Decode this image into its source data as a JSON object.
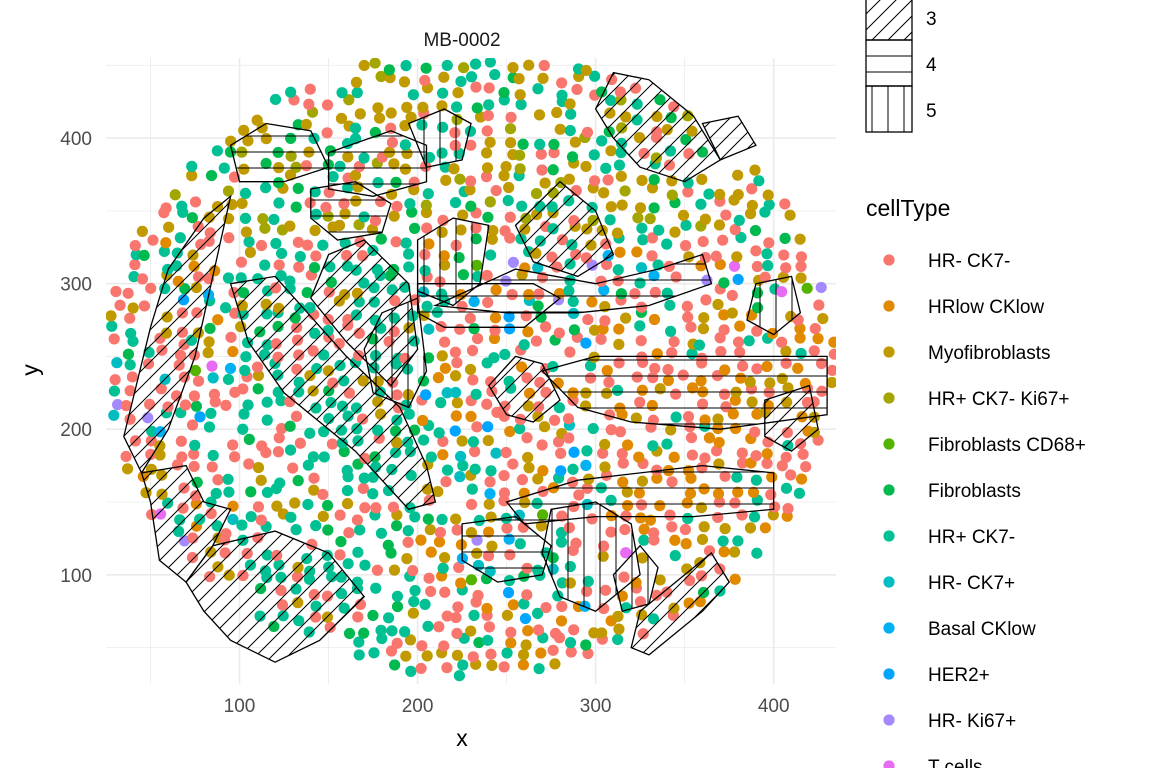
{
  "chart_data": {
    "type": "scatter",
    "facet_title": "MB-0002",
    "xlabel": "x",
    "ylabel": "y",
    "xlim": [
      25,
      435
    ],
    "ylim": [
      25,
      455
    ],
    "x_ticks": [
      100,
      200,
      300,
      400
    ],
    "y_ticks": [
      100,
      200,
      300,
      400
    ],
    "grid": true,
    "legend_position": "right",
    "pattern_legend": {
      "entries": [
        {
          "label": "3",
          "pattern": "diagonal"
        },
        {
          "label": "4",
          "pattern": "horizontal"
        },
        {
          "label": "5",
          "pattern": "vertical"
        }
      ]
    },
    "color_legend": {
      "title": "cellType",
      "entries": [
        {
          "label": "HR- CK7-",
          "color": "#F8766D"
        },
        {
          "label": "HRlow CKlow",
          "color": "#E18A00"
        },
        {
          "label": "Myofibroblasts",
          "color": "#C19A00"
        },
        {
          "label": "HR+ CK7- Ki67+",
          "color": "#A3A500"
        },
        {
          "label": "Fibroblasts CD68+",
          "color": "#53B400"
        },
        {
          "label": "Fibroblasts",
          "color": "#00B94F"
        },
        {
          "label": "HR+ CK7-",
          "color": "#00C094"
        },
        {
          "label": "HR- CK7+",
          "color": "#00BDC2"
        },
        {
          "label": "Basal CKlow",
          "color": "#00B2F3"
        },
        {
          "label": "HER2+",
          "color": "#00A5FF"
        },
        {
          "label": "HR- Ki67+",
          "color": "#A58AFF"
        },
        {
          "label": "T cells",
          "color": "#E76BF3"
        }
      ]
    },
    "regions": [
      {
        "pattern": "diagonal",
        "polygon": [
          [
            35,
            195
          ],
          [
            50,
            270
          ],
          [
            60,
            310
          ],
          [
            80,
            345
          ],
          [
            95,
            360
          ],
          [
            75,
            250
          ],
          [
            60,
            200
          ],
          [
            45,
            170
          ]
        ]
      },
      {
        "pattern": "diagonal",
        "polygon": [
          [
            45,
            170
          ],
          [
            70,
            175
          ],
          [
            80,
            150
          ],
          [
            95,
            145
          ],
          [
            85,
            120
          ],
          [
            70,
            95
          ],
          [
            55,
            110
          ],
          [
            50,
            150
          ]
        ]
      },
      {
        "pattern": "diagonal",
        "polygon": [
          [
            70,
            95
          ],
          [
            85,
            120
          ],
          [
            120,
            130
          ],
          [
            150,
            115
          ],
          [
            170,
            85
          ],
          [
            145,
            55
          ],
          [
            120,
            40
          ],
          [
            95,
            55
          ],
          [
            80,
            75
          ]
        ]
      },
      {
        "pattern": "diagonal",
        "polygon": [
          [
            150,
            320
          ],
          [
            170,
            330
          ],
          [
            195,
            300
          ],
          [
            200,
            255
          ],
          [
            185,
            230
          ],
          [
            160,
            260
          ],
          [
            140,
            290
          ]
        ]
      },
      {
        "pattern": "diagonal",
        "polygon": [
          [
            95,
            300
          ],
          [
            120,
            305
          ],
          [
            160,
            250
          ],
          [
            190,
            215
          ],
          [
            205,
            175
          ],
          [
            210,
            150
          ],
          [
            195,
            145
          ],
          [
            165,
            185
          ],
          [
            125,
            225
          ],
          [
            105,
            260
          ]
        ]
      },
      {
        "pattern": "diagonal",
        "polygon": [
          [
            255,
            340
          ],
          [
            280,
            370
          ],
          [
            300,
            350
          ],
          [
            310,
            320
          ],
          [
            290,
            305
          ],
          [
            265,
            315
          ]
        ]
      },
      {
        "pattern": "diagonal",
        "polygon": [
          [
            300,
            420
          ],
          [
            310,
            445
          ],
          [
            330,
            440
          ],
          [
            355,
            415
          ],
          [
            370,
            385
          ],
          [
            350,
            370
          ],
          [
            325,
            380
          ],
          [
            310,
            400
          ]
        ]
      },
      {
        "pattern": "diagonal",
        "polygon": [
          [
            360,
            410
          ],
          [
            380,
            415
          ],
          [
            390,
            395
          ],
          [
            370,
            385
          ]
        ]
      },
      {
        "pattern": "diagonal",
        "polygon": [
          [
            240,
            230
          ],
          [
            255,
            250
          ],
          [
            270,
            245
          ],
          [
            280,
            220
          ],
          [
            265,
            205
          ],
          [
            250,
            210
          ]
        ]
      },
      {
        "pattern": "diagonal",
        "polygon": [
          [
            350,
            100
          ],
          [
            365,
            115
          ],
          [
            375,
            95
          ],
          [
            360,
            75
          ],
          [
            345,
            60
          ],
          [
            330,
            45
          ],
          [
            320,
            50
          ],
          [
            325,
            75
          ]
        ]
      },
      {
        "pattern": "diagonal",
        "polygon": [
          [
            395,
            220
          ],
          [
            420,
            230
          ],
          [
            425,
            200
          ],
          [
            410,
            185
          ],
          [
            395,
            195
          ]
        ]
      },
      {
        "pattern": "horizontal",
        "polygon": [
          [
            95,
            395
          ],
          [
            115,
            410
          ],
          [
            140,
            405
          ],
          [
            150,
            380
          ],
          [
            125,
            370
          ],
          [
            100,
            370
          ]
        ]
      },
      {
        "pattern": "horizontal",
        "polygon": [
          [
            150,
            390
          ],
          [
            185,
            405
          ],
          [
            205,
            395
          ],
          [
            205,
            370
          ],
          [
            175,
            360
          ],
          [
            150,
            365
          ]
        ]
      },
      {
        "pattern": "horizontal",
        "polygon": [
          [
            140,
            365
          ],
          [
            165,
            370
          ],
          [
            185,
            355
          ],
          [
            180,
            335
          ],
          [
            155,
            330
          ],
          [
            140,
            345
          ]
        ]
      },
      {
        "pattern": "horizontal",
        "polygon": [
          [
            200,
            300
          ],
          [
            265,
            300
          ],
          [
            280,
            290
          ],
          [
            260,
            270
          ],
          [
            215,
            270
          ],
          [
            200,
            280
          ]
        ]
      },
      {
        "pattern": "horizontal",
        "polygon": [
          [
            210,
            285
          ],
          [
            255,
            310
          ],
          [
            300,
            300
          ],
          [
            335,
            310
          ],
          [
            360,
            320
          ],
          [
            365,
            300
          ],
          [
            330,
            285
          ],
          [
            290,
            280
          ],
          [
            250,
            280
          ]
        ]
      },
      {
        "pattern": "horizontal",
        "polygon": [
          [
            270,
            240
          ],
          [
            300,
            250
          ],
          [
            430,
            250
          ],
          [
            430,
            210
          ],
          [
            370,
            200
          ],
          [
            320,
            205
          ],
          [
            290,
            215
          ]
        ]
      },
      {
        "pattern": "horizontal",
        "polygon": [
          [
            250,
            150
          ],
          [
            290,
            165
          ],
          [
            360,
            175
          ],
          [
            400,
            170
          ],
          [
            400,
            145
          ],
          [
            355,
            140
          ],
          [
            300,
            140
          ],
          [
            260,
            135
          ]
        ]
      },
      {
        "pattern": "horizontal",
        "polygon": [
          [
            225,
            135
          ],
          [
            255,
            140
          ],
          [
            275,
            120
          ],
          [
            270,
            100
          ],
          [
            245,
            95
          ],
          [
            225,
            110
          ]
        ]
      },
      {
        "pattern": "vertical",
        "polygon": [
          [
            200,
            330
          ],
          [
            220,
            345
          ],
          [
            240,
            340
          ],
          [
            235,
            300
          ],
          [
            220,
            285
          ],
          [
            200,
            295
          ]
        ]
      },
      {
        "pattern": "vertical",
        "polygon": [
          [
            180,
            280
          ],
          [
            200,
            290
          ],
          [
            205,
            240
          ],
          [
            195,
            215
          ],
          [
            175,
            225
          ],
          [
            170,
            255
          ]
        ]
      },
      {
        "pattern": "vertical",
        "polygon": [
          [
            390,
            300
          ],
          [
            410,
            305
          ],
          [
            415,
            280
          ],
          [
            400,
            265
          ],
          [
            385,
            275
          ]
        ]
      },
      {
        "pattern": "vertical",
        "polygon": [
          [
            275,
            145
          ],
          [
            300,
            150
          ],
          [
            320,
            135
          ],
          [
            325,
            100
          ],
          [
            300,
            75
          ],
          [
            280,
            85
          ],
          [
            270,
            115
          ]
        ]
      },
      {
        "pattern": "vertical",
        "polygon": [
          [
            310,
            100
          ],
          [
            325,
            120
          ],
          [
            335,
            105
          ],
          [
            330,
            80
          ],
          [
            315,
            75
          ]
        ]
      },
      {
        "pattern": "vertical",
        "polygon": [
          [
            195,
            410
          ],
          [
            215,
            420
          ],
          [
            230,
            410
          ],
          [
            225,
            385
          ],
          [
            205,
            380
          ]
        ]
      }
    ]
  }
}
